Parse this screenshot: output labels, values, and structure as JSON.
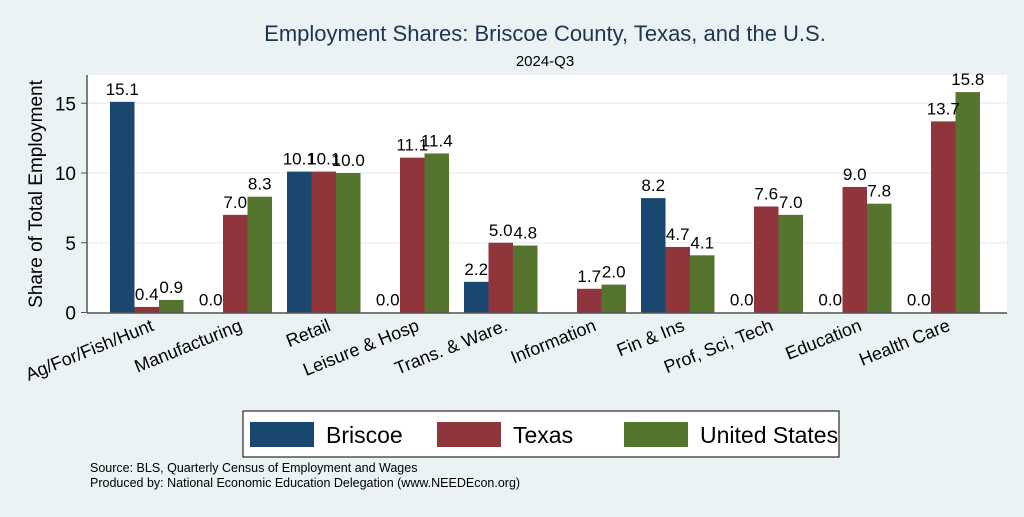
{
  "chart_data": {
    "type": "bar",
    "title": "Employment Shares: Briscoe County, Texas, and the U.S.",
    "subtitle": "2024-Q3",
    "xlabel": "",
    "ylabel": "Share of Total Employment",
    "ylim": [
      0,
      17
    ],
    "yticks": [
      0,
      5,
      10,
      15
    ],
    "grid": true,
    "legend_position": "bottom",
    "categories": [
      "Ag/For/Fish/Hunt",
      "Manufacturing",
      "Retail",
      "Leisure & Hosp",
      "Trans. & Ware.",
      "Information",
      "Fin & Ins",
      "Prof, Sci, Tech",
      "Education",
      "Health Care"
    ],
    "series": [
      {
        "name": "Briscoe",
        "color": "#1a476f",
        "values": [
          15.1,
          0.0,
          10.1,
          0.0,
          2.2,
          null,
          8.2,
          0.0,
          0.0,
          0.0
        ],
        "labels": [
          "15.1",
          "0.0",
          "10.1",
          "0.0",
          "2.2",
          "",
          "8.2",
          "0.0",
          "0.0",
          "0.0"
        ]
      },
      {
        "name": "Texas",
        "color": "#90353b",
        "values": [
          0.4,
          7.0,
          10.1,
          11.1,
          5.0,
          1.7,
          4.7,
          7.6,
          9.0,
          13.7
        ],
        "labels": [
          "0.4",
          "7.0",
          "10.1",
          "11.1",
          "5.0",
          "1.7",
          "4.7",
          "7.6",
          "9.0",
          "13.7"
        ]
      },
      {
        "name": "United States",
        "color": "#55752f",
        "values": [
          0.9,
          8.3,
          10.0,
          11.4,
          4.8,
          2.0,
          4.1,
          7.0,
          7.8,
          15.8
        ],
        "labels": [
          "0.9",
          "8.3",
          "10.0",
          "11.4",
          "4.8",
          "2.0",
          "4.1",
          "7.0",
          "7.8",
          "15.8"
        ]
      }
    ],
    "notes": [
      "Source: BLS, Quarterly Census of Employment and Wages",
      "Produced by: National Economic Education Delegation (www.NEEDEcon.org)"
    ]
  }
}
